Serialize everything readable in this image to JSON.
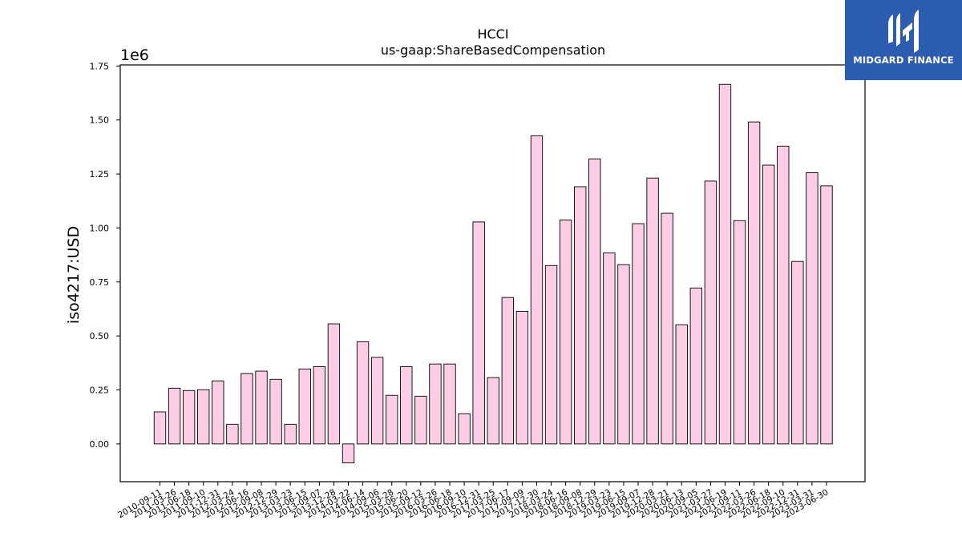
{
  "chart_data": {
    "type": "bar",
    "title": "HCCI",
    "subtitle": "us-gaap:ShareBasedCompensation",
    "xlabel": "",
    "ylabel": "iso4217:USD",
    "y_offset_label": "1e6",
    "ylim": [
      -175000,
      1755000
    ],
    "y_ticks": [
      0,
      250000,
      500000,
      750000,
      1000000,
      1250000,
      1500000,
      1750000
    ],
    "y_tick_labels": [
      "0.00",
      "0.25",
      "0.50",
      "0.75",
      "1.00",
      "1.25",
      "1.50",
      "1.75"
    ],
    "grid": false,
    "bar_color": "#fccde5",
    "bar_edge_color": "#000000",
    "categories": [
      "2010-09-11",
      "2011-03-26",
      "2011-06-18",
      "2011-09-10",
      "2011-12-31",
      "2012-03-24",
      "2012-06-16",
      "2012-09-08",
      "2012-12-29",
      "2013-03-23",
      "2013-06-15",
      "2013-09-07",
      "2013-12-28",
      "2014-03-22",
      "2014-06-14",
      "2014-09-06",
      "2015-03-28",
      "2015-06-20",
      "2015-09-12",
      "2016-03-26",
      "2016-06-18",
      "2016-09-10",
      "2016-12-31",
      "2017-03-25",
      "2017-06-17",
      "2017-09-09",
      "2017-12-30",
      "2018-03-24",
      "2018-06-16",
      "2018-09-08",
      "2018-12-29",
      "2019-03-23",
      "2019-06-15",
      "2019-09-07",
      "2019-12-28",
      "2020-03-21",
      "2020-06-13",
      "2020-09-05",
      "2021-03-27",
      "2021-06-19",
      "2021-09-11",
      "2022-03-26",
      "2022-06-18",
      "2022-09-10",
      "2022-12-31",
      "2023-03-31",
      "2023-06-30"
    ],
    "values": [
      148000,
      258000,
      247000,
      251000,
      292000,
      91000,
      326000,
      337000,
      299000,
      91000,
      347000,
      358000,
      556000,
      -88000,
      473000,
      401000,
      225000,
      358000,
      221000,
      370000,
      370000,
      140000,
      1028000,
      307000,
      678000,
      614000,
      1427000,
      826000,
      1037000,
      1191000,
      1320000,
      884000,
      830000,
      1020000,
      1231000,
      1068000,
      552000,
      722000,
      1217000,
      1665000,
      1034000,
      1491000,
      1291000,
      1379000,
      845000,
      1256000,
      1195000
    ]
  },
  "logo": {
    "text": "MIDGARD FINANCE",
    "bg_color": "#2c5cb0"
  }
}
